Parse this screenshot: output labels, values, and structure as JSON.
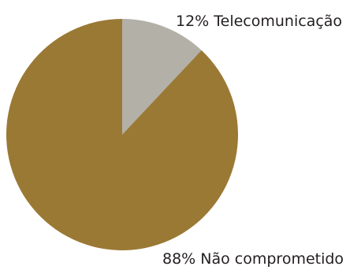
{
  "chart_data": {
    "type": "pie",
    "title": "",
    "slices": [
      {
        "label": "Telecomunicação",
        "value": 12,
        "display": "12% Telecomunicação",
        "color": "#b3b0a8"
      },
      {
        "label": "Não comprometido",
        "value": 88,
        "display": "88% Não comprometido",
        "color": "#9a7935"
      }
    ],
    "start_angle": "12 o'clock",
    "direction": "clockwise",
    "legend": "none"
  }
}
